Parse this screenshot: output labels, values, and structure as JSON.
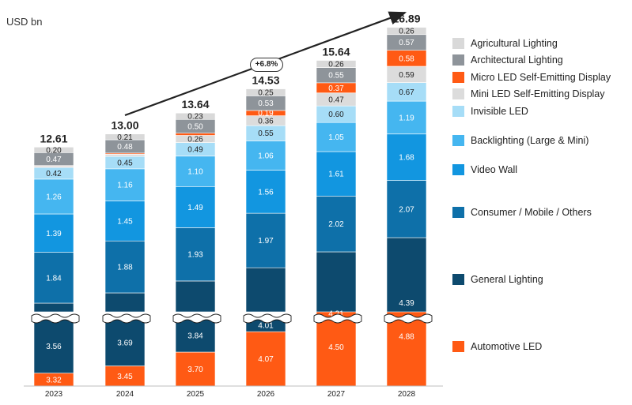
{
  "chart_data": {
    "type": "bar",
    "stacked": true,
    "unit": "USD bn",
    "categories": [
      "2023",
      "2024",
      "2025",
      "2026",
      "2027",
      "2028"
    ],
    "totals": [
      "12.61",
      "13.00",
      "13.64",
      "14.53",
      "15.64",
      "16.89"
    ],
    "growth_label": "+6.8%",
    "y_axis_break": true,
    "series": [
      {
        "name": "Automotive LED",
        "color": "#FF5A14",
        "labels": [
          "3.32",
          "3.45",
          "3.70",
          "4.07",
          "4.50",
          "4.88"
        ],
        "values": [
          3.32,
          3.45,
          3.7,
          4.07,
          4.5,
          4.88
        ]
      },
      {
        "name": "General Lighting",
        "color": "#0D4A6E",
        "labels": [
          "3.56",
          "3.69",
          "3.84",
          "4.01",
          "4.21",
          "4.39"
        ],
        "values": [
          3.56,
          3.69,
          3.84,
          4.01,
          4.21,
          4.39
        ]
      },
      {
        "name": "Consumer / Mobile / Others",
        "color": "#0E70A9",
        "labels": [
          "1.84",
          "1.88",
          "1.93",
          "1.97",
          "2.02",
          "2.07"
        ],
        "values": [
          1.84,
          1.88,
          1.93,
          1.97,
          2.02,
          2.07
        ]
      },
      {
        "name": "Video Wall",
        "color": "#1296E0",
        "labels": [
          "1.39",
          "1.45",
          "1.49",
          "1.56",
          "1.61",
          "1.68"
        ],
        "values": [
          1.39,
          1.45,
          1.49,
          1.56,
          1.61,
          1.68
        ]
      },
      {
        "name": "Backlighting (Large & Mini)",
        "color": "#45B6F0",
        "labels": [
          "1.26",
          "1.16",
          "1.10",
          "1.06",
          "1.05",
          "1.19"
        ],
        "values": [
          1.26,
          1.16,
          1.1,
          1.06,
          1.05,
          1.19
        ]
      },
      {
        "name": "Invisible LED",
        "color": "#A6DDF7",
        "labels": [
          "0.42",
          "0.45",
          "0.49",
          "0.55",
          "0.60",
          "0.67"
        ],
        "values": [
          0.42,
          0.45,
          0.49,
          0.55,
          0.6,
          0.67
        ]
      },
      {
        "name": "Mini LED Self-Emitting Display",
        "color": "#DCDCDC",
        "labels": [
          "",
          "",
          "0.26",
          "0.36",
          "0.47",
          "0.59"
        ],
        "values": [
          0.05,
          0.08,
          0.26,
          0.36,
          0.47,
          0.59
        ]
      },
      {
        "name": "Micro LED Self-Emitting Display",
        "color": "#FF5A14",
        "labels": [
          "",
          "",
          "",
          "0.19",
          "0.37",
          "0.58"
        ],
        "values": [
          0.02,
          0.04,
          0.08,
          0.19,
          0.37,
          0.58
        ]
      },
      {
        "name": "Architectural Lighting",
        "color": "#8E949A",
        "labels": [
          "0.47",
          "0.48",
          "0.50",
          "0.53",
          "0.55",
          "0.57"
        ],
        "values": [
          0.47,
          0.48,
          0.5,
          0.53,
          0.55,
          0.57
        ]
      },
      {
        "name": "Agricultural Lighting",
        "color": "#D9D9D9",
        "labels": [
          "0.20",
          "0.21",
          "0.23",
          "0.25",
          "0.26",
          "0.26"
        ],
        "values": [
          0.2,
          0.21,
          0.23,
          0.25,
          0.26,
          0.26
        ]
      }
    ]
  },
  "legend": [
    {
      "label": "Agricultural Lighting",
      "color": "#D9D9D9"
    },
    {
      "label": "Architectural Lighting",
      "color": "#8E949A"
    },
    {
      "label": "Micro LED Self-Emitting Display",
      "color": "#FF5A14"
    },
    {
      "label": "Mini LED Self-Emitting Display",
      "color": "#DCDCDC"
    },
    {
      "label": "Invisible LED",
      "color": "#A6DDF7"
    },
    {
      "label": "Backlighting (Large & Mini)",
      "color": "#45B6F0"
    },
    {
      "label": "Video Wall",
      "color": "#1296E0"
    },
    {
      "label": "Consumer / Mobile / Others",
      "color": "#0E70A9"
    },
    {
      "label": "General Lighting",
      "color": "#0D4A6E"
    },
    {
      "label": "Automotive LED",
      "color": "#FF5A14"
    }
  ]
}
